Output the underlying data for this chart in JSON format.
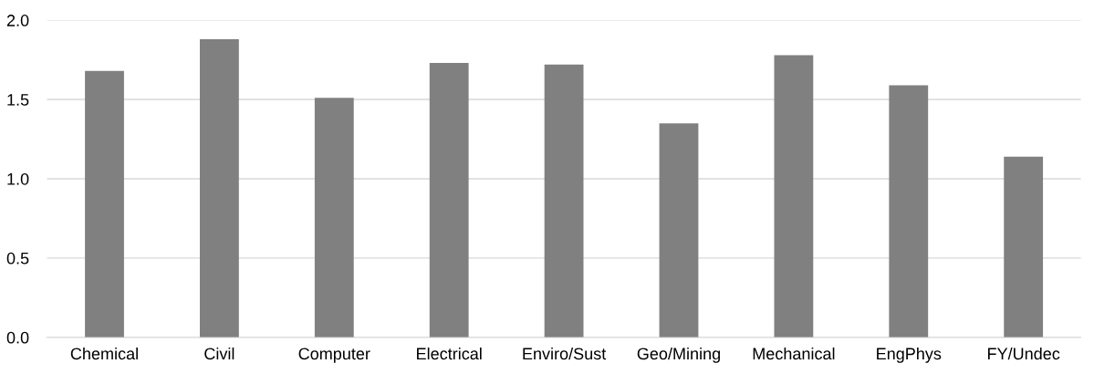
{
  "chart_data": {
    "type": "bar",
    "categories": [
      "Chemical",
      "Civil",
      "Computer",
      "Electrical",
      "Enviro/Sust",
      "Geo/Mining",
      "Mechanical",
      "EngPhys",
      "FY/Undec"
    ],
    "values": [
      1.68,
      1.88,
      1.51,
      1.73,
      1.72,
      1.35,
      1.78,
      1.59,
      1.14
    ],
    "color": "#808080",
    "ylim": [
      0,
      2
    ],
    "yticks": [
      {
        "value": 0,
        "label": "0.0"
      },
      {
        "value": 0.5,
        "label": "0.5"
      },
      {
        "value": 1,
        "label": "1.0"
      },
      {
        "value": 1.5,
        "label": "1.5"
      },
      {
        "value": 2,
        "label": "2.0"
      }
    ],
    "grid": "y"
  }
}
